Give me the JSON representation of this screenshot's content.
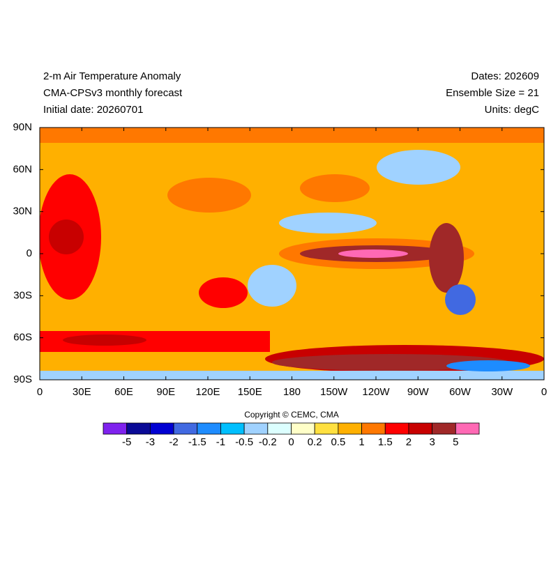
{
  "header": {
    "left": [
      "2-m Air Temperature Anomaly",
      "CMA-CPSv3 monthly forecast",
      "Initial date: 20260701"
    ],
    "right": [
      "Dates: 202609",
      "Ensemble Size = 21",
      "Units: degC"
    ]
  },
  "map": {
    "lat_labels": [
      "90N",
      "60N",
      "30N",
      "0",
      "30S",
      "60S",
      "90S"
    ],
    "lon_labels": [
      "0",
      "30E",
      "60E",
      "90E",
      "120E",
      "150E",
      "180",
      "150W",
      "120W",
      "90W",
      "60W",
      "30W",
      "0"
    ]
  },
  "copyright": "Copyright © CEMC, CMA",
  "colorbar": {
    "colors": [
      "#7f22ee",
      "#0a0a96",
      "#0000d2",
      "#4169e1",
      "#1e8cff",
      "#00bfff",
      "#a0d2ff",
      "#dcffff",
      "#ffffc8",
      "#ffe040",
      "#ffb000",
      "#ff7800",
      "#ff0000",
      "#c80000",
      "#a02828",
      "#ff69b4"
    ],
    "labels": [
      "-5",
      "-3",
      "-2",
      "-1.5",
      "-1",
      "-0.5",
      "-0.2",
      "0",
      "0.2",
      "0.5",
      "1",
      "1.5",
      "2",
      "3",
      "5"
    ]
  }
}
